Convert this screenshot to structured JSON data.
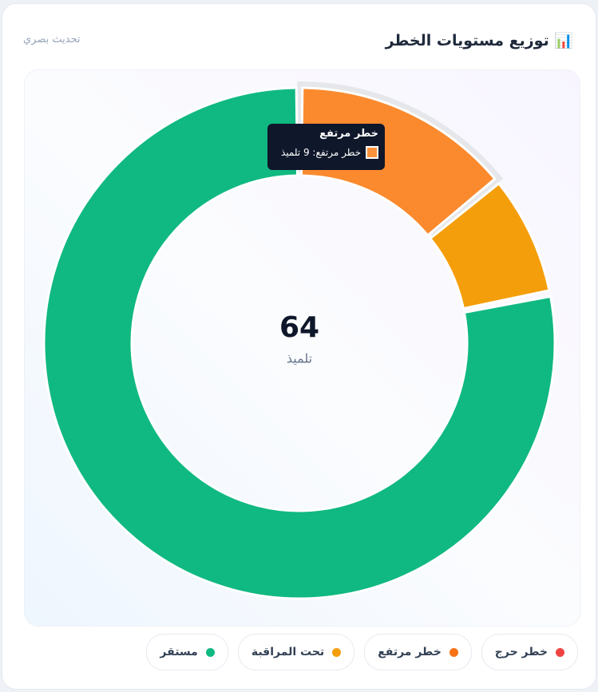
{
  "header": {
    "title": "📊 توزيع مستويات الخطر",
    "action": "تحديث بصري"
  },
  "chart_data": {
    "type": "donut",
    "categories": [
      "خطر حرج",
      "خطر مرتفع",
      "تحت المراقبة",
      "مستقر"
    ],
    "values": [
      0,
      9,
      5,
      50
    ],
    "colors": [
      "#ef4444",
      "#f97316",
      "#f59e0b",
      "#10b981"
    ],
    "center_value": 64,
    "center_label": "تلميذ",
    "tooltip": {
      "title": "خطر مرتفع",
      "body": "خطر مرتفع: 9 تلميذ"
    }
  }
}
